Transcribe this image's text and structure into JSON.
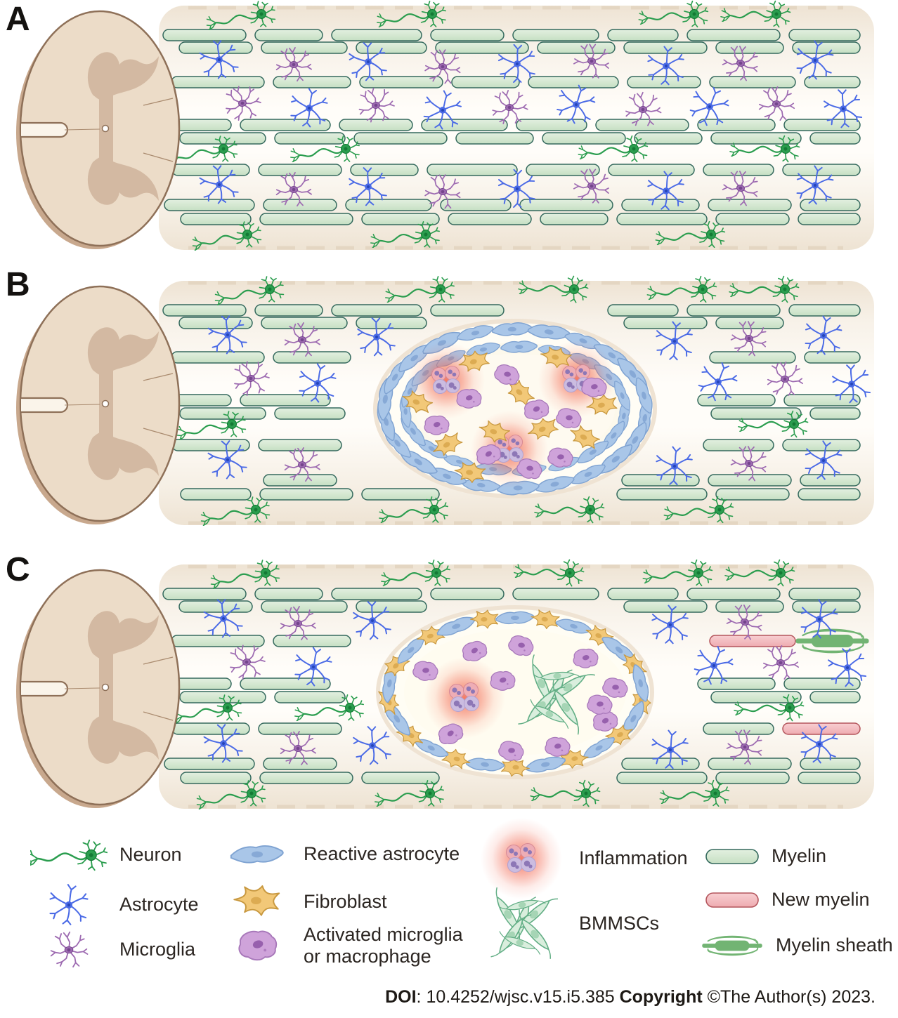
{
  "panels": [
    {
      "label": "A"
    },
    {
      "label": "B"
    },
    {
      "label": "C"
    }
  ],
  "legend": {
    "items": [
      {
        "icon": "neuron-icon",
        "label": "Neuron"
      },
      {
        "icon": "astrocyte-icon",
        "label": "Astrocyte"
      },
      {
        "icon": "microglia-icon",
        "label": "Microglia"
      },
      {
        "icon": "reactive-astrocyte-icon",
        "label": "Reactive astrocyte"
      },
      {
        "icon": "fibroblast-icon",
        "label": "Fibroblast"
      },
      {
        "icon": "activated-microglia-or-macrophage-icon",
        "label": "Activated microglia or macrophage"
      },
      {
        "icon": "inflammation-icon",
        "label": "Inflammation"
      },
      {
        "icon": "bmmscs-icon",
        "label": "BMMSCs"
      },
      {
        "icon": "myelin-icon",
        "label": "Myelin"
      },
      {
        "icon": "new-myelin-icon",
        "label": "New myelin"
      },
      {
        "icon": "myelin-sheath-icon",
        "label": "Myelin sheath"
      }
    ]
  },
  "footer": {
    "doi_label": "DOI",
    "doi_text": ": 10.4252/wjsc.v15.i5.385 ",
    "copyright_label": "Copyright",
    "copyright_text": " ©The Author(s) 2023."
  },
  "palette": {
    "neuron": "#2a9d4e",
    "neuron_dark": "#147a35",
    "astrocyte": "#4a6ae6",
    "astrocyte_dark": "#2746b8",
    "microglia": "#9d6ab1",
    "microglia_dark": "#74458c",
    "fibroblast": "#f2c878",
    "fibroblast_dark": "#c8983f",
    "fibroblast_nuc": "#dcab52",
    "macrophage": "#cfa3da",
    "macrophage_dark": "#a878ba",
    "macrophage_nuc": "#9760ad",
    "reactive": "#a9c6e8",
    "reactive_dark": "#7fa3d2",
    "reactive_nuc": "#87a9d6",
    "leuko_pink": "#eeadb5",
    "leuko_pink_dark": "#d68893",
    "leuko_lav": "#cbbce0",
    "leuko_lav_dark": "#b2a1d0",
    "leuko_nuc": "#8d77b6",
    "inflammation": "#f15a41",
    "bmmsc": "#d9eedd",
    "bmmsc_dark": "#62ae85",
    "bmmsc_nuc": "#a6d5b5",
    "myelin_light": "#e3f0e0",
    "myelin": "#c6dfc3",
    "myelin_stroke": "#34695d",
    "new_myelin_light": "#f8cfd2",
    "new_myelin": "#eeabb0",
    "new_myelin_stroke": "#b4555c",
    "sheath": "#72b473",
    "cord_fill": "#ecdcc8",
    "cord_gray": "#d3b9a2",
    "cord_stroke": "#8e7058",
    "cord_rim": "#c8a88d",
    "cord_line": "#a98a6e",
    "tube_edge": "#eee3d3",
    "tube_mid": "#fffdf9",
    "tube_dash": "#e4d6c2"
  }
}
